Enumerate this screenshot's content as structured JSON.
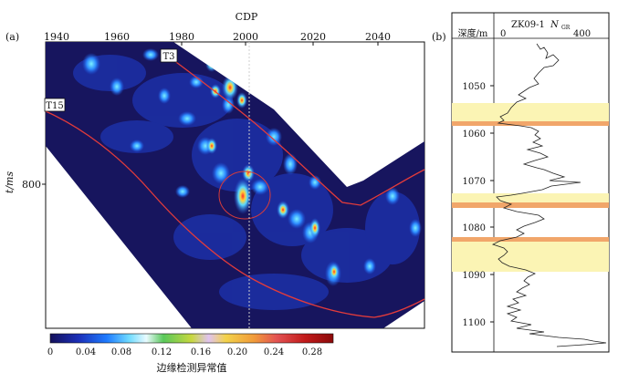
{
  "panel_a": {
    "panel_label": "(a)",
    "x_axis_title": "CDP",
    "x_ticks": [
      "1940",
      "1960",
      "1980",
      "2000",
      "2020",
      "2040"
    ],
    "y_axis_title": "t/ms",
    "y_ticks": [
      "800"
    ],
    "horizons": [
      {
        "label": "T3",
        "color": "#e23b3b"
      },
      {
        "label": "T15",
        "color": "#e23b3b"
      }
    ],
    "colorbar": {
      "title": "边缘检测异常值",
      "ticks": [
        "0",
        "0.04",
        "0.08",
        "0.12",
        "0.16",
        "0.20",
        "0.24",
        "0.28"
      ],
      "colors": [
        "#14105a",
        "#0b3fd6",
        "#18a6ff",
        "#7fe7ff",
        "#ffffff",
        "#3fbf3f",
        "#e6d63a",
        "#f4a23a",
        "#e84a4a",
        "#c81b1b",
        "#ff3fa6",
        "#ff9de0"
      ]
    }
  },
  "panel_b": {
    "panel_label": "(b)",
    "depth_header": "深度/m",
    "well_name": "ZK09-1",
    "log_name_main": "N",
    "log_name_sub": "GR",
    "log_scale_ticks": [
      "0",
      "400"
    ],
    "depth_ticks": [
      "1050",
      "1060",
      "1070",
      "1080",
      "1090",
      "1100"
    ]
  }
}
